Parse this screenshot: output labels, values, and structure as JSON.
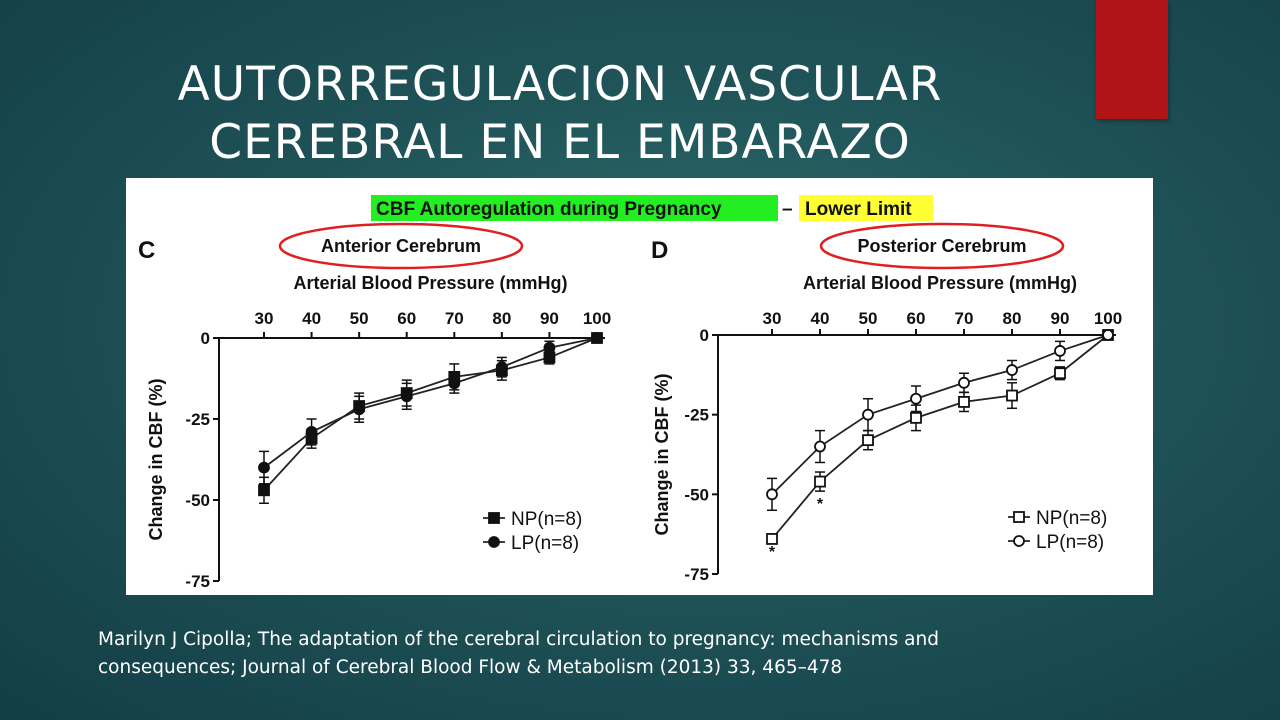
{
  "slide": {
    "title_line1": "AUTORREGULACION VASCULAR",
    "title_line2": "CEREBRAL EN EL EMBARAZO",
    "citation_line1": "Marilyn J Cipolla; The adaptation of the cerebral circulation to pregnancy: mechanisms and",
    "citation_line2": "consequences; Journal of Cerebral Blood Flow & Metabolism (2013) 33, 465–478",
    "accent_color": "#b01417"
  },
  "figure": {
    "header_left": "CBF Autoregulation during Pregnancy",
    "header_dash": "–",
    "header_right": "Lower Limit",
    "header_left_color": "#22ee22",
    "header_right_color": "#ffff33",
    "circle_color": "#e02020"
  },
  "chart_data": [
    {
      "type": "line",
      "panel_letter": "C",
      "title": "Anterior Cerebrum",
      "xlabel": "Arterial Blood Pressure (mmHg)",
      "ylabel": "Change in CBF (%)",
      "xlim": [
        30,
        100
      ],
      "ylim": [
        -75,
        0
      ],
      "x_ticks": [
        "30",
        "40",
        "50",
        "60",
        "70",
        "80",
        "90",
        "100"
      ],
      "y_ticks": [
        "0",
        "-25",
        "-50",
        "-75"
      ],
      "x": [
        30,
        40,
        50,
        60,
        70,
        80,
        90,
        100
      ],
      "series": [
        {
          "name": "NP(n=8)",
          "marker": "filled-square",
          "values": [
            -47,
            -31,
            -21,
            -17,
            -12,
            -10,
            -6,
            0
          ],
          "errors": [
            4,
            3,
            4,
            4,
            4,
            3,
            2,
            0
          ]
        },
        {
          "name": "LP(n=8)",
          "marker": "filled-circle",
          "values": [
            -40,
            -29,
            -22,
            -18,
            -14,
            -9,
            -3,
            0
          ],
          "errors": [
            5,
            4,
            4,
            4,
            3,
            3,
            2,
            0
          ]
        }
      ],
      "legend": "bottom-right",
      "annotations": []
    },
    {
      "type": "line",
      "panel_letter": "D",
      "title": "Posterior Cerebrum",
      "xlabel": "Arterial Blood Pressure (mmHg)",
      "ylabel": "Change in CBF (%)",
      "xlim": [
        30,
        100
      ],
      "ylim": [
        -75,
        0
      ],
      "x_ticks": [
        "30",
        "40",
        "50",
        "60",
        "70",
        "80",
        "90",
        "100"
      ],
      "y_ticks": [
        "0",
        "-25",
        "-50",
        "-75"
      ],
      "x": [
        30,
        40,
        50,
        60,
        70,
        80,
        90,
        100
      ],
      "series": [
        {
          "name": "NP(n=8)",
          "marker": "open-square",
          "values": [
            -64,
            -46,
            -33,
            -26,
            -21,
            -19,
            -12,
            0
          ],
          "errors": [
            0,
            3,
            3,
            4,
            3,
            4,
            2,
            0
          ]
        },
        {
          "name": "LP(n=8)",
          "marker": "open-circle",
          "values": [
            -50,
            -35,
            -25,
            -20,
            -15,
            -11,
            -5,
            0
          ],
          "errors": [
            5,
            5,
            5,
            4,
            3,
            3,
            3,
            0
          ]
        }
      ],
      "legend": "bottom-right",
      "annotations": [
        {
          "text": "*",
          "x": 30
        },
        {
          "text": "*",
          "x": 40
        }
      ]
    }
  ]
}
